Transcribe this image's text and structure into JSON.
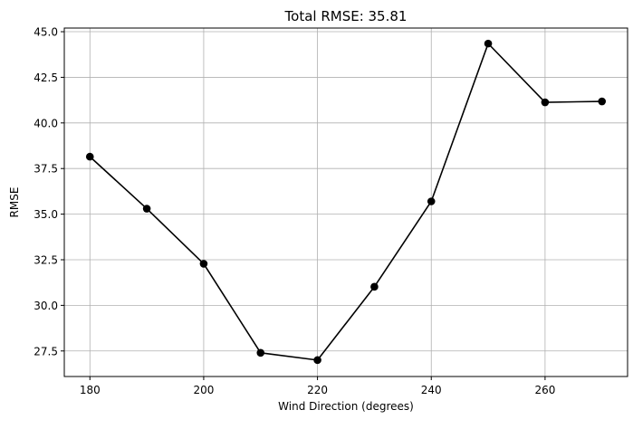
{
  "chart_data": {
    "type": "line",
    "title": "Total RMSE: 35.81",
    "xlabel": "Wind Direction (degrees)",
    "ylabel": "RMSE",
    "x": [
      180,
      190,
      200,
      210,
      220,
      230,
      240,
      250,
      260,
      270
    ],
    "series": [
      {
        "values": [
          38.15,
          35.3,
          32.28,
          27.4,
          27.0,
          31.02,
          35.7,
          44.35,
          41.13,
          41.18
        ],
        "color": "#000000",
        "marker": "circle"
      }
    ],
    "xlim": [
      175.5,
      274.5
    ],
    "ylim": [
      26.1,
      45.2
    ],
    "xticks": [
      180,
      200,
      220,
      240,
      260
    ],
    "xtick_labels": [
      "180",
      "200",
      "220",
      "240",
      "260"
    ],
    "yticks": [
      27.5,
      30.0,
      32.5,
      35.0,
      37.5,
      40.0,
      42.5,
      45.0
    ],
    "ytick_labels": [
      "27.5",
      "30.0",
      "32.5",
      "35.0",
      "37.5",
      "40.0",
      "42.5",
      "45.0"
    ],
    "grid": true,
    "grid_color": "#b0b0b0"
  }
}
